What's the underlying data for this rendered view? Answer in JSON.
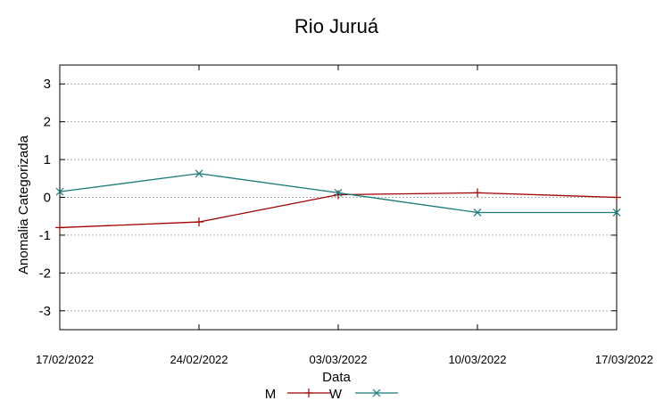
{
  "chart_data": {
    "type": "line",
    "title": "Rio Juruá",
    "xlabel": "Data",
    "ylabel": "Anomalia Categorizada",
    "x": [
      "17/02/2022",
      "24/02/2022",
      "03/03/2022",
      "10/03/2022",
      "17/03/2022"
    ],
    "ylim": [
      -3.5,
      3.5
    ],
    "yticks": [
      3,
      2,
      1,
      0,
      -1,
      -2,
      -3
    ],
    "ytick_labels": [
      "3",
      "2",
      "1",
      "0",
      "-1",
      "-2",
      "-3"
    ],
    "grid": true,
    "legend_position": "bottom-center",
    "series": [
      {
        "name": "M",
        "color": "#a00000",
        "marker": "+",
        "values": [
          -0.8,
          -0.65,
          0.07,
          0.12,
          0.0
        ]
      },
      {
        "name": "W",
        "color": "#1a7a7a",
        "marker": "x",
        "values": [
          0.15,
          0.63,
          0.12,
          -0.4,
          -0.4
        ]
      }
    ]
  }
}
